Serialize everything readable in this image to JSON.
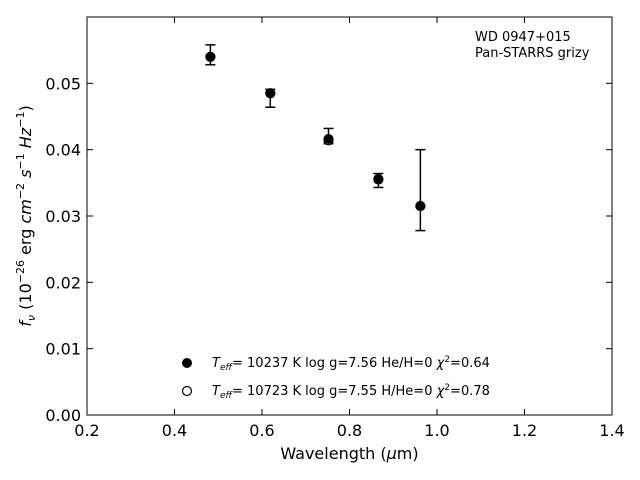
{
  "chart_data": {
    "type": "scatter",
    "title": "",
    "xlabel": "Wavelength (μm)",
    "ylabel": "fν (10⁻²⁶ erg cm⁻² s⁻¹ Hz⁻¹)",
    "xlim": [
      0.2,
      1.4
    ],
    "ylim": [
      0.0,
      0.06
    ],
    "x_ticks": [
      "0.2",
      "0.4",
      "0.6",
      "0.8",
      "1.0",
      "1.2",
      "1.4"
    ],
    "y_ticks": [
      "0.00",
      "0.01",
      "0.02",
      "0.03",
      "0.04",
      "0.05"
    ],
    "grid": false,
    "annotation": [
      "WD 0947+015",
      "Pan-STARRS grizy"
    ],
    "legend_position": "lower-center",
    "series": [
      {
        "marker": "filled-circle",
        "color": "#000000",
        "label": {
          "teff": "10237",
          "logg": "7.56",
          "comp": "He/H=0",
          "chi2": "0.64"
        },
        "points": [
          {
            "x": 0.482,
            "y": 0.054,
            "y_lo": 0.0528,
            "y_hi": 0.0558
          },
          {
            "x": 0.619,
            "y": 0.0485,
            "y_lo": 0.0464,
            "y_hi": 0.0491
          },
          {
            "x": 0.752,
            "y": 0.0416,
            "y_lo": 0.0409,
            "y_hi": 0.0432
          },
          {
            "x": 0.866,
            "y": 0.0356,
            "y_lo": 0.0343,
            "y_hi": 0.0364
          },
          {
            "x": 0.962,
            "y": 0.0315,
            "y_lo": 0.0278,
            "y_hi": 0.04
          }
        ]
      },
      {
        "marker": "open-circle",
        "color": "#000000",
        "label": {
          "teff": "10723",
          "logg": "7.55",
          "comp": "H/He=0",
          "chi2": "0.78"
        },
        "points": [
          {
            "x": 0.482,
            "y": 0.054
          },
          {
            "x": 0.619,
            "y": 0.0485
          },
          {
            "x": 0.752,
            "y": 0.0414
          },
          {
            "x": 0.866,
            "y": 0.0355
          },
          {
            "x": 0.962,
            "y": 0.0315
          }
        ]
      }
    ]
  }
}
